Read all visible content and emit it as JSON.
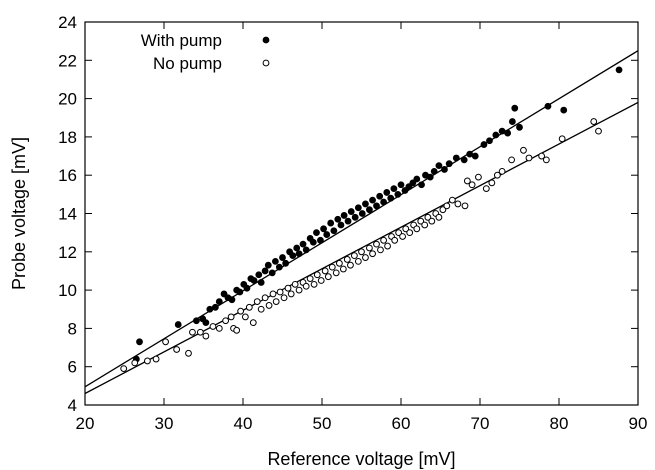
{
  "chart_data": {
    "type": "scatter",
    "title": "",
    "xlabel": "Reference voltage [mV]",
    "ylabel": "Probe voltage [mV]",
    "xlim": [
      20,
      90
    ],
    "ylim": [
      4,
      24
    ],
    "xticks": [
      20,
      30,
      40,
      50,
      60,
      70,
      80,
      90
    ],
    "yticks": [
      4,
      6,
      8,
      10,
      12,
      14,
      16,
      18,
      20,
      22,
      24
    ],
    "grid": false,
    "legend_position": "top-left",
    "series": [
      {
        "name": "With pump",
        "marker": "filled-circle",
        "color": "#000000",
        "points": [
          [
            26.5,
            6.4
          ],
          [
            26.9,
            7.3
          ],
          [
            31.8,
            8.2
          ],
          [
            34.1,
            8.4
          ],
          [
            34.9,
            8.5
          ],
          [
            35.3,
            8.3
          ],
          [
            35.8,
            9.0
          ],
          [
            36.5,
            9.1
          ],
          [
            37.0,
            9.4
          ],
          [
            37.6,
            9.8
          ],
          [
            38.1,
            9.6
          ],
          [
            38.6,
            9.5
          ],
          [
            39.2,
            10.0
          ],
          [
            39.6,
            9.9
          ],
          [
            40.1,
            10.3
          ],
          [
            40.5,
            10.1
          ],
          [
            41.0,
            10.6
          ],
          [
            41.4,
            10.5
          ],
          [
            42.0,
            10.8
          ],
          [
            42.3,
            10.4
          ],
          [
            42.8,
            11.0
          ],
          [
            43.2,
            11.3
          ],
          [
            43.7,
            10.9
          ],
          [
            44.1,
            11.5
          ],
          [
            44.6,
            11.2
          ],
          [
            45.0,
            11.7
          ],
          [
            45.4,
            11.4
          ],
          [
            45.9,
            12.0
          ],
          [
            46.3,
            11.8
          ],
          [
            46.8,
            12.2
          ],
          [
            47.1,
            11.9
          ],
          [
            47.6,
            12.4
          ],
          [
            48.0,
            12.1
          ],
          [
            48.5,
            12.7
          ],
          [
            48.9,
            12.5
          ],
          [
            49.3,
            13.0
          ],
          [
            49.8,
            12.6
          ],
          [
            50.2,
            13.2
          ],
          [
            50.6,
            12.9
          ],
          [
            51.1,
            13.5
          ],
          [
            51.5,
            13.1
          ],
          [
            52.0,
            13.7
          ],
          [
            52.4,
            13.4
          ],
          [
            52.8,
            13.9
          ],
          [
            53.3,
            13.6
          ],
          [
            53.7,
            14.1
          ],
          [
            54.2,
            13.8
          ],
          [
            54.6,
            14.3
          ],
          [
            55.1,
            14.0
          ],
          [
            55.5,
            14.5
          ],
          [
            56.0,
            14.2
          ],
          [
            56.4,
            14.7
          ],
          [
            56.9,
            14.4
          ],
          [
            57.3,
            14.9
          ],
          [
            57.8,
            14.6
          ],
          [
            58.2,
            15.1
          ],
          [
            58.7,
            14.8
          ],
          [
            59.1,
            15.3
          ],
          [
            59.6,
            15.0
          ],
          [
            60.0,
            15.5
          ],
          [
            60.5,
            15.2
          ],
          [
            61.0,
            15.4
          ],
          [
            61.5,
            15.6
          ],
          [
            62.0,
            15.8
          ],
          [
            62.6,
            15.5
          ],
          [
            63.1,
            16.0
          ],
          [
            63.7,
            15.9
          ],
          [
            64.2,
            16.2
          ],
          [
            64.8,
            16.5
          ],
          [
            65.5,
            16.3
          ],
          [
            66.1,
            16.6
          ],
          [
            67.0,
            16.9
          ],
          [
            68.0,
            16.8
          ],
          [
            68.7,
            17.1
          ],
          [
            69.4,
            17.0
          ],
          [
            70.5,
            17.6
          ],
          [
            71.2,
            17.8
          ],
          [
            72.0,
            18.1
          ],
          [
            72.8,
            18.3
          ],
          [
            73.5,
            18.2
          ],
          [
            74.1,
            18.8
          ],
          [
            74.4,
            19.5
          ],
          [
            75.0,
            18.5
          ],
          [
            78.6,
            19.6
          ],
          [
            80.6,
            19.4
          ],
          [
            87.6,
            21.5
          ]
        ]
      },
      {
        "name": "No pump",
        "marker": "open-circle",
        "color": "#000000",
        "points": [
          [
            24.9,
            5.9
          ],
          [
            26.3,
            6.2
          ],
          [
            27.9,
            6.3
          ],
          [
            29.0,
            6.4
          ],
          [
            30.2,
            7.3
          ],
          [
            31.6,
            6.9
          ],
          [
            33.1,
            6.7
          ],
          [
            33.6,
            7.8
          ],
          [
            34.6,
            7.8
          ],
          [
            35.3,
            7.6
          ],
          [
            36.2,
            8.1
          ],
          [
            37.0,
            8.0
          ],
          [
            37.8,
            8.4
          ],
          [
            38.5,
            8.6
          ],
          [
            38.8,
            8.0
          ],
          [
            39.2,
            7.9
          ],
          [
            39.7,
            8.9
          ],
          [
            40.3,
            8.6
          ],
          [
            40.8,
            9.1
          ],
          [
            41.3,
            8.3
          ],
          [
            41.8,
            9.4
          ],
          [
            42.3,
            9.0
          ],
          [
            42.8,
            9.6
          ],
          [
            43.3,
            9.2
          ],
          [
            43.8,
            9.8
          ],
          [
            44.2,
            9.4
          ],
          [
            44.7,
            9.9
          ],
          [
            45.2,
            9.6
          ],
          [
            45.7,
            10.1
          ],
          [
            46.1,
            9.8
          ],
          [
            46.6,
            10.3
          ],
          [
            47.1,
            10.0
          ],
          [
            47.6,
            10.4
          ],
          [
            48.0,
            10.2
          ],
          [
            48.5,
            10.6
          ],
          [
            49.0,
            10.3
          ],
          [
            49.4,
            10.8
          ],
          [
            49.9,
            10.5
          ],
          [
            50.4,
            11.0
          ],
          [
            50.8,
            10.7
          ],
          [
            51.3,
            11.2
          ],
          [
            51.8,
            10.9
          ],
          [
            52.2,
            11.4
          ],
          [
            52.7,
            11.1
          ],
          [
            53.2,
            11.6
          ],
          [
            53.6,
            11.3
          ],
          [
            54.1,
            11.8
          ],
          [
            54.6,
            11.5
          ],
          [
            55.0,
            12.0
          ],
          [
            55.5,
            11.7
          ],
          [
            56.0,
            12.2
          ],
          [
            56.4,
            11.9
          ],
          [
            56.9,
            12.4
          ],
          [
            57.4,
            12.1
          ],
          [
            57.8,
            12.6
          ],
          [
            58.3,
            12.3
          ],
          [
            58.8,
            12.8
          ],
          [
            59.2,
            12.6
          ],
          [
            59.7,
            13.0
          ],
          [
            60.2,
            12.8
          ],
          [
            60.6,
            13.2
          ],
          [
            61.1,
            13.0
          ],
          [
            61.6,
            13.4
          ],
          [
            62.0,
            13.2
          ],
          [
            62.5,
            13.6
          ],
          [
            63.0,
            13.4
          ],
          [
            63.4,
            13.8
          ],
          [
            63.9,
            13.6
          ],
          [
            64.4,
            14.0
          ],
          [
            64.8,
            13.8
          ],
          [
            65.3,
            14.2
          ],
          [
            65.8,
            14.4
          ],
          [
            66.5,
            14.7
          ],
          [
            67.2,
            14.5
          ],
          [
            68.1,
            14.4
          ],
          [
            68.4,
            15.7
          ],
          [
            69.0,
            15.5
          ],
          [
            69.8,
            15.9
          ],
          [
            70.8,
            15.3
          ],
          [
            71.5,
            15.6
          ],
          [
            72.2,
            16.0
          ],
          [
            72.8,
            16.2
          ],
          [
            74.0,
            16.8
          ],
          [
            75.5,
            17.3
          ],
          [
            76.2,
            16.9
          ],
          [
            77.8,
            17.0
          ],
          [
            78.4,
            16.8
          ],
          [
            80.4,
            17.9
          ],
          [
            84.4,
            18.8
          ],
          [
            85.0,
            18.3
          ]
        ]
      }
    ],
    "fit_lines": [
      {
        "series": "With pump",
        "x": [
          20,
          90
        ],
        "y": [
          4.95,
          22.5
        ]
      },
      {
        "series": "No pump",
        "x": [
          20,
          90
        ],
        "y": [
          4.6,
          19.8
        ]
      }
    ]
  }
}
